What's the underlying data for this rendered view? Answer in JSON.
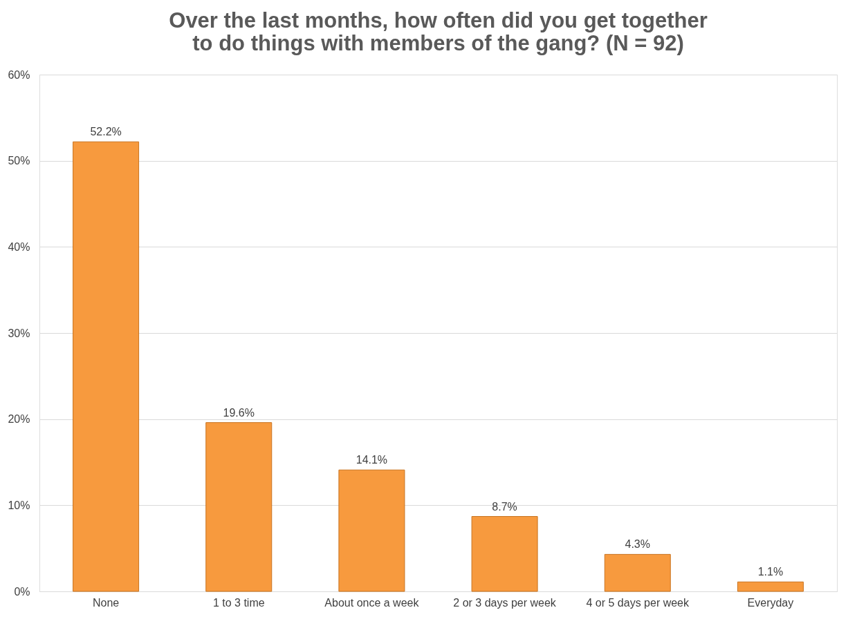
{
  "chart_data": {
    "type": "bar",
    "title": "Over the last months, how often did you get together to do things with members of the gang? (N = 92)",
    "categories": [
      "None",
      "1 to 3 time",
      "About once a week",
      "2 or 3 days per week",
      "4 or 5 days per week",
      "Everyday"
    ],
    "values": [
      52.2,
      19.6,
      14.1,
      8.7,
      4.3,
      1.1
    ],
    "value_labels": [
      "52.2%",
      "19.6%",
      "14.1%",
      "8.7%",
      "4.3%",
      "1.1%"
    ],
    "color": "#f79a3e",
    "ylim": [
      0,
      60
    ],
    "yticks": [
      {
        "value": 0,
        "label": "0%"
      },
      {
        "value": 10,
        "label": "10%"
      },
      {
        "value": 20,
        "label": "20%"
      },
      {
        "value": 30,
        "label": "30%"
      },
      {
        "value": 40,
        "label": "40%"
      },
      {
        "value": 50,
        "label": "50%"
      },
      {
        "value": 60,
        "label": "60%"
      }
    ],
    "grid": "y"
  }
}
